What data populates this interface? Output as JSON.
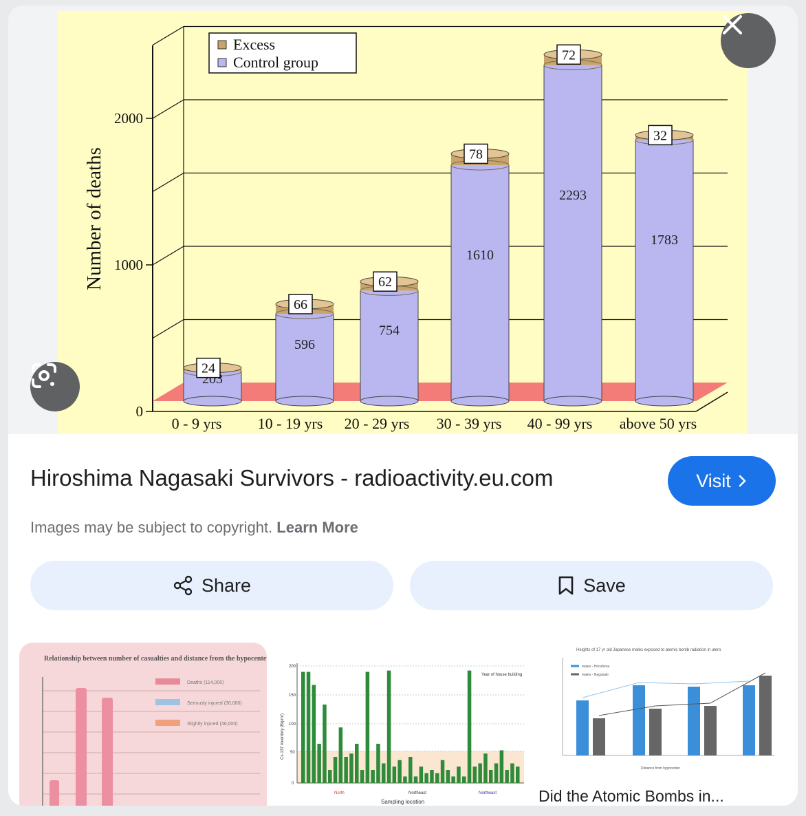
{
  "result": {
    "title": "Hiroshima Nagasaki Survivors - radioactivity.eu.com",
    "visit_label": "Visit",
    "copyright_text": "Images may be subject to copyright.",
    "learn_more_label": "Learn More",
    "share_label": "Share",
    "save_label": "Save"
  },
  "icons": {
    "close": "close-icon",
    "lens": "google-lens-icon",
    "visit_arrow": "chevron-right-icon",
    "share": "share-icon",
    "save": "bookmark-icon"
  },
  "colors": {
    "accent": "#1a73e8",
    "action_bg": "#e8f0fe",
    "overlay_button": "#5f6163"
  },
  "chart_data": {
    "type": "bar",
    "ylabel": "Number of deaths",
    "yticks": [
      0,
      1000,
      2000
    ],
    "ylim": [
      0,
      2500
    ],
    "legend": [
      {
        "name": "Excess",
        "color": "#c9a46a"
      },
      {
        "name": "Control group",
        "color": "#b9b6f0"
      }
    ],
    "legend_position": "top-left",
    "categories": [
      "0 - 9 yrs",
      "10 - 19 yrs",
      "20 - 29 yrs",
      "30 - 39 yrs",
      "40 - 99 yrs",
      "above 50 yrs"
    ],
    "series": [
      {
        "name": "Control group",
        "values": [
          203,
          596,
          754,
          1610,
          2293,
          1783
        ]
      },
      {
        "name": "Excess",
        "values": [
          24,
          66,
          62,
          78,
          72,
          32
        ]
      }
    ],
    "stacked": true,
    "grid": true
  },
  "related": [
    {
      "title": "Relationship between number of casualties and distance from the hypocenter",
      "legend": [
        "Deaths (114,000)",
        "Seriously injured (30,000)",
        "Slightly injured (46,000)"
      ]
    },
    {
      "ylabel": "Cs-137 inventory (Bq/m²)",
      "xlabel": "Sampling location",
      "annotation": "Year of house building",
      "regions": [
        "North",
        "Northeast",
        "Northeast"
      ],
      "yticks": [
        "0",
        "50",
        "100",
        "150",
        "200"
      ]
    },
    {
      "caption": "Did the Atomic Bombs in...",
      "chart_title": "Heights of 17 yr old Japanese males exposed to atomic bomb radiation in utero",
      "legend": [
        "males - Hiroshima",
        "males - Nagasaki"
      ],
      "xlabel": "Distance from hypocenter"
    }
  ]
}
